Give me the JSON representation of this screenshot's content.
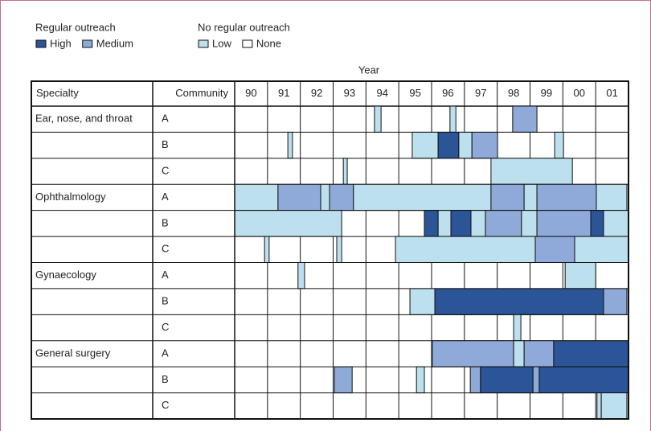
{
  "chart_data": {
    "type": "timeline",
    "x_label": "Year",
    "xlim": [
      90,
      102
    ],
    "columns": [
      "Specialty",
      "Community"
    ],
    "categories": [
      "90",
      "91",
      "92",
      "93",
      "94",
      "95",
      "96",
      "97",
      "98",
      "99",
      "00",
      "01"
    ],
    "legend": [
      {
        "title": "Regular outreach",
        "items": [
          {
            "name": "High",
            "color": "#2b5597"
          },
          {
            "name": "Medium",
            "color": "#8faad8"
          }
        ]
      },
      {
        "title": "No regular outreach",
        "items": [
          {
            "name": "Low",
            "color": "#bde0ee"
          },
          {
            "name": "None",
            "color": "#ffffff"
          }
        ]
      }
    ],
    "rows": [
      {
        "specialty": "Ear, nose, and throat",
        "community": "A",
        "segments": [
          {
            "start": 94.26,
            "end": 94.46,
            "level": "Low"
          },
          {
            "start": 96.56,
            "end": 96.74,
            "level": "Low"
          },
          {
            "start": 98.47,
            "end": 99.21,
            "level": "Medium"
          }
        ]
      },
      {
        "community": "B",
        "segments": [
          {
            "start": 91.62,
            "end": 91.76,
            "level": "Low"
          },
          {
            "start": 95.41,
            "end": 96.2,
            "level": "Low"
          },
          {
            "start": 96.2,
            "end": 96.83,
            "level": "High"
          },
          {
            "start": 96.83,
            "end": 97.23,
            "level": "Low"
          },
          {
            "start": 97.23,
            "end": 98.01,
            "level": "Medium"
          },
          {
            "start": 99.75,
            "end": 100.02,
            "level": "Low"
          }
        ]
      },
      {
        "community": "C",
        "segments": [
          {
            "start": 93.31,
            "end": 93.43,
            "level": "Low"
          },
          {
            "start": 97.81,
            "end": 100.29,
            "level": "Low"
          }
        ]
      },
      {
        "specialty": "Ophthalmology",
        "community": "A",
        "segments": [
          {
            "start": 90,
            "end": 91.32,
            "level": "Low"
          },
          {
            "start": 91.32,
            "end": 92.62,
            "level": "Medium"
          },
          {
            "start": 92.62,
            "end": 92.89,
            "level": "Low"
          },
          {
            "start": 92.89,
            "end": 93.62,
            "level": "Medium"
          },
          {
            "start": 93.62,
            "end": 97.81,
            "level": "Low"
          },
          {
            "start": 97.81,
            "end": 98.82,
            "level": "Medium"
          },
          {
            "start": 98.82,
            "end": 99.21,
            "level": "Low"
          },
          {
            "start": 99.21,
            "end": 101.02,
            "level": "Medium"
          },
          {
            "start": 101.02,
            "end": 101.95,
            "level": "Low"
          }
        ]
      },
      {
        "community": "B",
        "segments": [
          {
            "start": 90,
            "end": 93.26,
            "level": "Low"
          },
          {
            "start": 95.78,
            "end": 96.2,
            "level": "High"
          },
          {
            "start": 96.2,
            "end": 96.59,
            "level": "Low"
          },
          {
            "start": 96.59,
            "end": 97.2,
            "level": "High"
          },
          {
            "start": 97.2,
            "end": 97.64,
            "level": "Low"
          },
          {
            "start": 97.64,
            "end": 98.74,
            "level": "Medium"
          },
          {
            "start": 98.74,
            "end": 99.21,
            "level": "Low"
          },
          {
            "start": 99.21,
            "end": 100.85,
            "level": "Medium"
          },
          {
            "start": 100.85,
            "end": 101.24,
            "level": "High"
          },
          {
            "start": 101.24,
            "end": 102,
            "level": "Low"
          }
        ]
      },
      {
        "community": "C",
        "segments": [
          {
            "start": 90.91,
            "end": 91.05,
            "level": "Low"
          },
          {
            "start": 93.11,
            "end": 93.26,
            "level": "Low"
          },
          {
            "start": 94.9,
            "end": 99.16,
            "level": "Low"
          },
          {
            "start": 99.16,
            "end": 100.36,
            "level": "Medium"
          },
          {
            "start": 100.36,
            "end": 102,
            "level": "Low"
          }
        ]
      },
      {
        "specialty": "Gynaecology",
        "community": "A",
        "segments": [
          {
            "start": 91.93,
            "end": 92.13,
            "level": "Low"
          },
          {
            "start": 100.07,
            "end": 101.0,
            "level": "Low"
          }
        ]
      },
      {
        "community": "B",
        "segments": [
          {
            "start": 95.34,
            "end": 96.1,
            "level": "Low"
          },
          {
            "start": 96.1,
            "end": 101.24,
            "level": "High"
          },
          {
            "start": 101.24,
            "end": 101.95,
            "level": "Medium"
          }
        ]
      },
      {
        "community": "C",
        "segments": [
          {
            "start": 98.5,
            "end": 98.72,
            "level": "Low"
          }
        ]
      },
      {
        "specialty": "General surgery",
        "community": "A",
        "segments": [
          {
            "start": 96.02,
            "end": 98.5,
            "level": "Medium"
          },
          {
            "start": 98.5,
            "end": 98.82,
            "level": "Low"
          },
          {
            "start": 98.82,
            "end": 99.72,
            "level": "Medium"
          },
          {
            "start": 99.72,
            "end": 102,
            "level": "High"
          }
        ]
      },
      {
        "community": "B",
        "segments": [
          {
            "start": 93.04,
            "end": 93.58,
            "level": "Medium"
          },
          {
            "start": 95.54,
            "end": 95.78,
            "level": "Low"
          },
          {
            "start": 97.18,
            "end": 97.49,
            "level": "Medium"
          },
          {
            "start": 97.49,
            "end": 99.09,
            "level": "High"
          },
          {
            "start": 99.09,
            "end": 99.28,
            "level": "Medium"
          },
          {
            "start": 99.28,
            "end": 102,
            "level": "High"
          }
        ]
      },
      {
        "community": "C",
        "segments": [
          {
            "start": 101.04,
            "end": 101.17,
            "level": "Low"
          },
          {
            "start": 101.17,
            "end": 101.95,
            "level": "Low"
          }
        ]
      }
    ]
  }
}
